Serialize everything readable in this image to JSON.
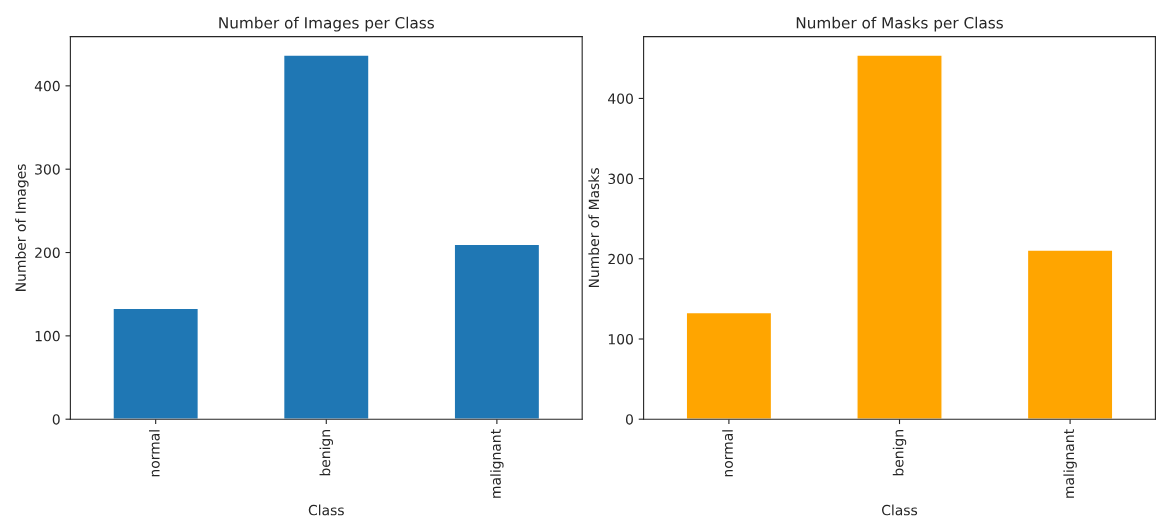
{
  "chart_data": [
    {
      "type": "bar",
      "title": "Number of Images per Class",
      "xlabel": "Class",
      "ylabel": "Number of Images",
      "categories": [
        "normal",
        "benign",
        "malignant"
      ],
      "values": [
        133,
        437,
        210
      ],
      "color": "#1f77b4",
      "ylim": [
        0,
        459
      ],
      "yticks": [
        0,
        100,
        200,
        300,
        400
      ],
      "grid": false
    },
    {
      "type": "bar",
      "title": "Number of Masks per Class",
      "xlabel": "Class",
      "ylabel": "Number of Masks",
      "categories": [
        "normal",
        "benign",
        "malignant"
      ],
      "values": [
        133,
        454,
        211
      ],
      "color": "#ffa500",
      "ylim": [
        0,
        477
      ],
      "yticks": [
        0,
        100,
        200,
        300,
        400
      ],
      "grid": false
    }
  ]
}
